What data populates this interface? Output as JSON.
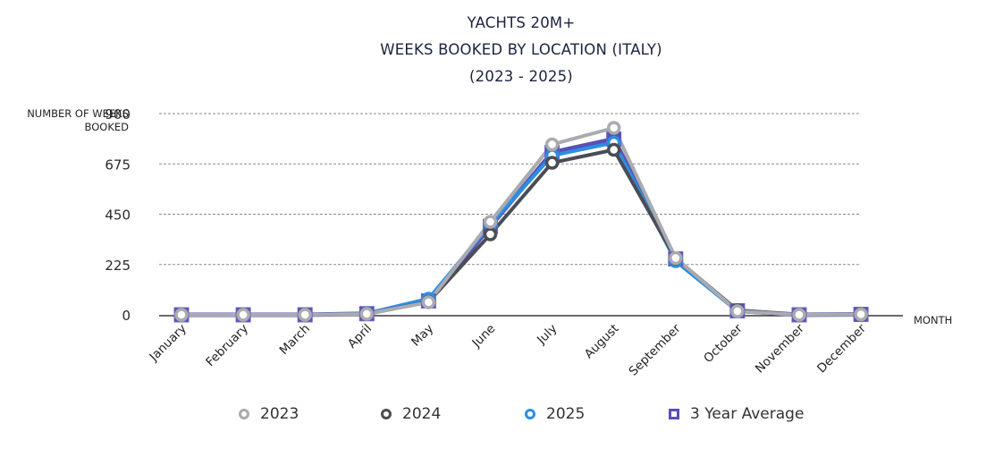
{
  "chart_data": {
    "type": "line",
    "title": [
      "YACHTS 20M+",
      "WEEKS BOOKED BY LOCATION (ITALY)",
      "(2023 - 2025)"
    ],
    "xlabel": "MONTH",
    "ylabel": "NUMBER OF WEEKS BOOKED",
    "ylim": [
      0,
      900
    ],
    "yticks": [
      0,
      225,
      450,
      675,
      900
    ],
    "grid": "horizontal-dashed",
    "legend_position": "bottom",
    "categories": [
      "January",
      "February",
      "March",
      "April",
      "May",
      "June",
      "July",
      "August",
      "September",
      "October",
      "November",
      "December"
    ],
    "series": [
      {
        "name": "3 Year Average",
        "color": "#5a4fb3",
        "marker": "square",
        "values": [
          0,
          0,
          0,
          5,
          62,
          395,
          726,
          786,
          250,
          18,
          0,
          2
        ]
      },
      {
        "name": "2025",
        "color": "#2b8fe3",
        "marker": "circle",
        "values": [
          0,
          0,
          0,
          6,
          72,
          404,
          712,
          770,
          240,
          16,
          0,
          2
        ]
      },
      {
        "name": "2024",
        "color": "#4a4d55",
        "marker": "circle",
        "values": [
          0,
          0,
          0,
          4,
          58,
          360,
          680,
          738,
          252,
          20,
          0,
          2
        ]
      },
      {
        "name": "2023",
        "color": "#a9abb0",
        "marker": "circle",
        "values": [
          0,
          0,
          0,
          4,
          56,
          416,
          762,
          836,
          254,
          16,
          0,
          2
        ]
      }
    ]
  },
  "legend": [
    {
      "label": "2023",
      "color": "#a9abb0",
      "marker": "circle"
    },
    {
      "label": "2024",
      "color": "#4a4d55",
      "marker": "circle"
    },
    {
      "label": "2025",
      "color": "#2b8fe3",
      "marker": "circle"
    },
    {
      "label": "3 Year Average",
      "color": "#5a4fb3",
      "marker": "square"
    }
  ]
}
